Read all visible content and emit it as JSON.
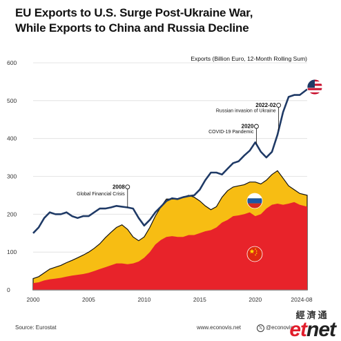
{
  "title_line1": "EU Exports to U.S. Surge Post-Ukraine War,",
  "title_line2": "While Exports to China and Russia Decline",
  "source": "Source: Eurostat",
  "website": "www.econovis.net",
  "social_handle": "@econovis",
  "watermark_cn": "經濟通",
  "watermark_en_left": "et",
  "watermark_en_right": "net",
  "colors": {
    "us_line": "#1f3a66",
    "russia_area": "#f7bd13",
    "china_area": "#e8232a",
    "grid": "#dddddd",
    "text": "#333333"
  },
  "icons": {
    "us": "us-flag-icon",
    "russia": "russia-flag-icon",
    "china": "china-flag-icon",
    "social": "x-logo-icon"
  },
  "chart_data": {
    "type": "area",
    "ylabel": "Exports (Billion Euro, 12-Month Rolling Sum)",
    "ylim": [
      0,
      600
    ],
    "yticks": [
      0,
      100,
      200,
      300,
      400,
      500,
      600
    ],
    "xlim": [
      2000,
      2024.67
    ],
    "xticks": [
      2000,
      2005,
      2010,
      2015,
      2020
    ],
    "xtick_labels": [
      "2000",
      "2005",
      "2010",
      "2015",
      "2020"
    ],
    "last_tick_label": "2024-08",
    "grid": true,
    "legend": "flag icons placed on each series",
    "series": [
      {
        "key": "us",
        "kind": "line",
        "x": [
          2000,
          2000.5,
          2001,
          2001.5,
          2002,
          2002.5,
          2003,
          2003.5,
          2004,
          2004.5,
          2005,
          2005.5,
          2006,
          2006.5,
          2007,
          2007.5,
          2008,
          2008.5,
          2009,
          2009.5,
          2010,
          2010.5,
          2011,
          2011.5,
          2012,
          2012.5,
          2013,
          2013.5,
          2014,
          2014.5,
          2015,
          2015.5,
          2016,
          2016.5,
          2017,
          2017.5,
          2018,
          2018.5,
          2019,
          2019.5,
          2020,
          2020.5,
          2021,
          2021.5,
          2022,
          2022.5,
          2023,
          2023.5,
          2024,
          2024.67
        ],
        "y": [
          150,
          165,
          190,
          205,
          200,
          200,
          205,
          195,
          190,
          195,
          195,
          205,
          215,
          215,
          218,
          222,
          220,
          218,
          215,
          190,
          170,
          185,
          205,
          220,
          235,
          242,
          240,
          245,
          248,
          250,
          265,
          290,
          310,
          310,
          305,
          320,
          335,
          340,
          355,
          368,
          390,
          365,
          350,
          365,
          410,
          470,
          510,
          515,
          515,
          530
        ]
      },
      {
        "key": "china_plus_russia",
        "kind": "area_top",
        "x": [
          2000,
          2000.5,
          2001,
          2001.5,
          2002,
          2002.5,
          2003,
          2003.5,
          2004,
          2004.5,
          2005,
          2005.5,
          2006,
          2006.5,
          2007,
          2007.5,
          2008,
          2008.5,
          2009,
          2009.5,
          2010,
          2010.5,
          2011,
          2011.5,
          2012,
          2012.5,
          2013,
          2013.5,
          2014,
          2014.5,
          2015,
          2015.5,
          2016,
          2016.5,
          2017,
          2017.5,
          2018,
          2018.5,
          2019,
          2019.5,
          2020,
          2020.5,
          2021,
          2021.5,
          2022,
          2022.5,
          2023,
          2023.5,
          2024,
          2024.67
        ],
        "y": [
          30,
          35,
          45,
          55,
          60,
          65,
          72,
          78,
          85,
          92,
          100,
          110,
          122,
          138,
          152,
          165,
          172,
          160,
          140,
          130,
          140,
          165,
          195,
          220,
          240,
          240,
          240,
          245,
          250,
          245,
          235,
          222,
          212,
          220,
          245,
          262,
          272,
          275,
          278,
          285,
          285,
          280,
          290,
          305,
          315,
          295,
          275,
          265,
          255,
          250
        ]
      },
      {
        "key": "china",
        "kind": "area",
        "x": [
          2000,
          2000.5,
          2001,
          2001.5,
          2002,
          2002.5,
          2003,
          2003.5,
          2004,
          2004.5,
          2005,
          2005.5,
          2006,
          2006.5,
          2007,
          2007.5,
          2008,
          2008.5,
          2009,
          2009.5,
          2010,
          2010.5,
          2011,
          2011.5,
          2012,
          2012.5,
          2013,
          2013.5,
          2014,
          2014.5,
          2015,
          2015.5,
          2016,
          2016.5,
          2017,
          2017.5,
          2018,
          2018.5,
          2019,
          2019.5,
          2020,
          2020.5,
          2021,
          2021.5,
          2022,
          2022.5,
          2023,
          2023.5,
          2024,
          2024.67
        ],
        "y": [
          18,
          20,
          25,
          28,
          30,
          32,
          35,
          38,
          40,
          42,
          45,
          50,
          55,
          60,
          65,
          70,
          70,
          68,
          70,
          75,
          85,
          100,
          120,
          132,
          140,
          142,
          140,
          140,
          145,
          145,
          150,
          155,
          158,
          165,
          178,
          185,
          195,
          197,
          200,
          205,
          195,
          200,
          215,
          225,
          228,
          225,
          228,
          232,
          225,
          220
        ]
      }
    ],
    "annotations": [
      {
        "year_label": "2008",
        "text": "Global Financial Crisis",
        "x": 2008.5,
        "y": 272
      },
      {
        "year_label": "2020",
        "text": "COVID-19 Pandemic",
        "x": 2020.1,
        "y": 432
      },
      {
        "year_label": "2022-02",
        "text": "Russian invasion of Ukraine",
        "x": 2022.1,
        "y": 488
      }
    ]
  }
}
